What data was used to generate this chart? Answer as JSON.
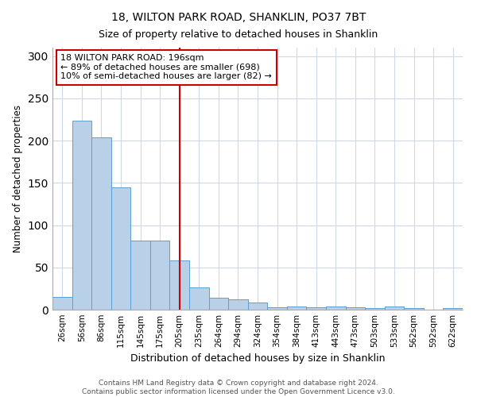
{
  "title": "18, WILTON PARK ROAD, SHANKLIN, PO37 7BT",
  "subtitle": "Size of property relative to detached houses in Shanklin",
  "xlabel": "Distribution of detached houses by size in Shanklin",
  "ylabel": "Number of detached properties",
  "bar_labels": [
    "26sqm",
    "56sqm",
    "86sqm",
    "115sqm",
    "145sqm",
    "175sqm",
    "205sqm",
    "235sqm",
    "264sqm",
    "294sqm",
    "324sqm",
    "354sqm",
    "384sqm",
    "413sqm",
    "443sqm",
    "473sqm",
    "503sqm",
    "533sqm",
    "562sqm",
    "592sqm",
    "622sqm"
  ],
  "bar_values": [
    15,
    224,
    204,
    145,
    82,
    82,
    58,
    26,
    14,
    12,
    8,
    3,
    4,
    3,
    4,
    3,
    2,
    4,
    2,
    0,
    2
  ],
  "bar_color": "#b8d0e8",
  "bar_edge_color": "#5a9fd4",
  "vline_x": 6.0,
  "vline_color": "#cc0000",
  "ylim": [
    0,
    310
  ],
  "yticks": [
    0,
    50,
    100,
    150,
    200,
    250,
    300
  ],
  "annotation_title": "18 WILTON PARK ROAD: 196sqm",
  "annotation_line1": "← 89% of detached houses are smaller (698)",
  "annotation_line2": "10% of semi-detached houses are larger (82) →",
  "annotation_box_color": "#ffffff",
  "annotation_box_edge": "#cc0000",
  "footer_line1": "Contains HM Land Registry data © Crown copyright and database right 2024.",
  "footer_line2": "Contains public sector information licensed under the Open Government Licence v3.0.",
  "background_color": "#ffffff",
  "grid_color": "#d0d8e8"
}
